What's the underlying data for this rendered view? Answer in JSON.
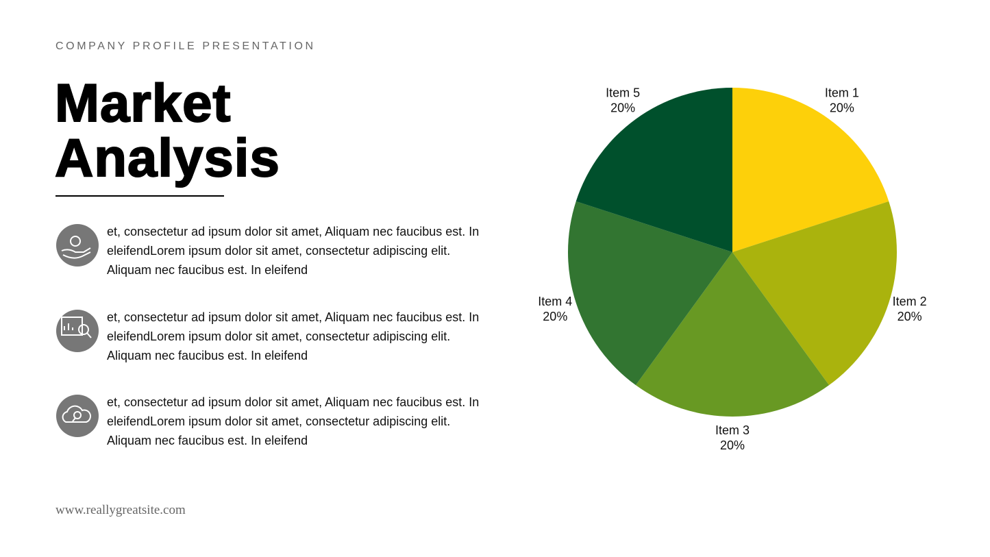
{
  "header": {
    "subtitle": "COMPANY PROFILE PRESENTATION",
    "title_line1": "Market",
    "title_line2": "Analysis"
  },
  "items": [
    {
      "text": "et, consectetur ad ipsum dolor sit amet, Aliquam nec faucibus est. In eleifendLorem ipsum dolor sit amet, consectetur adipiscing elit. Aliquam nec faucibus est. In eleifend"
    },
    {
      "text": "et, consectetur ad ipsum dolor sit amet, Aliquam nec faucibus est. In eleifendLorem ipsum dolor sit amet, consectetur adipiscing elit. Aliquam nec faucibus est. In eleifend"
    },
    {
      "text": "et, consectetur ad ipsum dolor sit amet, Aliquam nec faucibus est. In eleifendLorem ipsum dolor sit amet, consectetur adipiscing elit. Aliquam nec faucibus est. In eleifend"
    }
  ],
  "footer": {
    "website": "www.reallygreatsite.com"
  },
  "chart_data": {
    "type": "pie",
    "categories": [
      "Item 1",
      "Item 2",
      "Item 3",
      "Item 4",
      "Item 5"
    ],
    "values": [
      20,
      20,
      20,
      20,
      20
    ],
    "value_labels": [
      "20%",
      "20%",
      "20%",
      "20%",
      "20%"
    ],
    "colors": [
      "#fdd00a",
      "#aab30d",
      "#689923",
      "#327531",
      "#00502c"
    ]
  }
}
